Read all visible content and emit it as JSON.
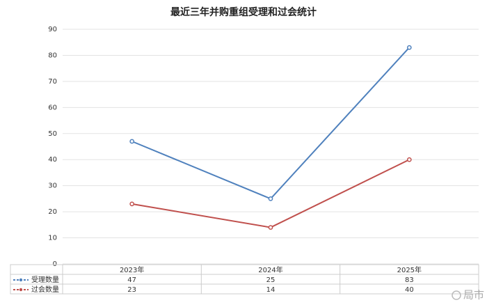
{
  "chart_data": {
    "type": "line",
    "title": "最近三年并购重组受理和过会统计",
    "categories": [
      "2023年",
      "2024年",
      "2025年"
    ],
    "series": [
      {
        "name": "受理数量",
        "color": "#4f81bd",
        "values": [
          47,
          25,
          83
        ]
      },
      {
        "name": "过会数量",
        "color": "#c0504d",
        "values": [
          23,
          14,
          40
        ]
      }
    ],
    "ylim": [
      0,
      90
    ],
    "yticks": [
      0,
      10,
      20,
      30,
      40,
      50,
      60,
      70,
      80,
      90
    ],
    "grid": true,
    "data_table": true,
    "watermark": "局市"
  }
}
